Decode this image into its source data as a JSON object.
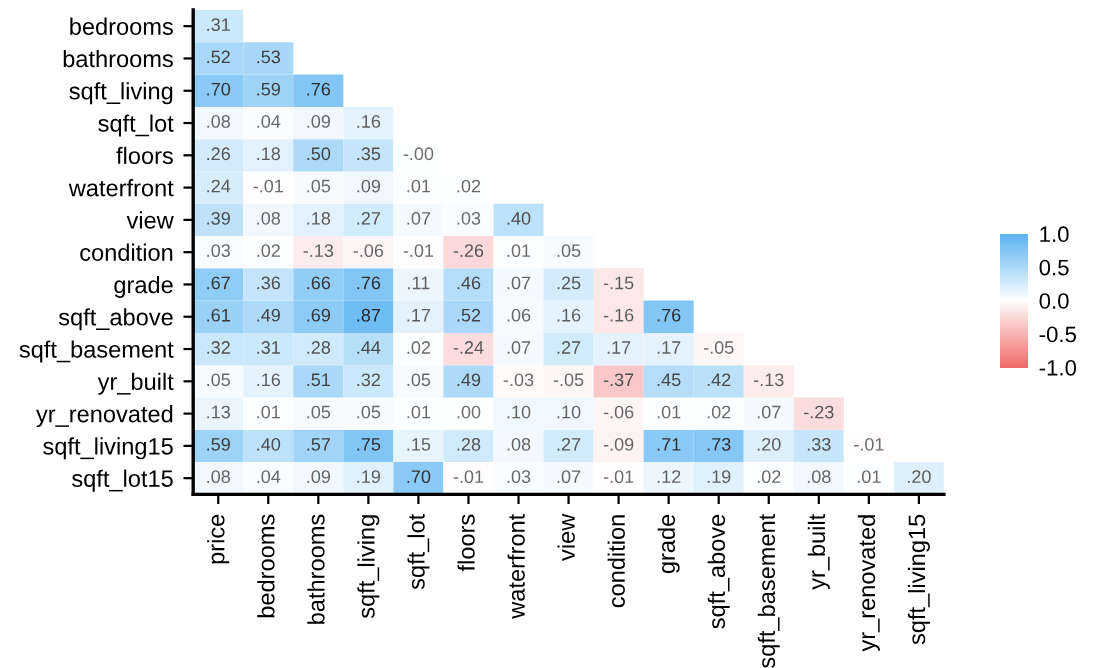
{
  "chart_data": {
    "type": "heatmap",
    "categories": [
      "price",
      "bedrooms",
      "bathrooms",
      "sqft_living",
      "sqft_lot",
      "floors",
      "waterfront",
      "view",
      "condition",
      "grade",
      "sqft_above",
      "sqft_basement",
      "yr_built",
      "yr_renovated",
      "sqft_living15"
    ],
    "y_categories": [
      "bedrooms",
      "bathrooms",
      "sqft_living",
      "sqft_lot",
      "floors",
      "waterfront",
      "view",
      "condition",
      "grade",
      "sqft_above",
      "sqft_basement",
      "yr_built",
      "yr_renovated",
      "sqft_living15",
      "sqft_lot15"
    ],
    "cells": [
      [
        0.31,
        null,
        null,
        null,
        null,
        null,
        null,
        null,
        null,
        null,
        null,
        null,
        null,
        null,
        null
      ],
      [
        0.52,
        0.53,
        null,
        null,
        null,
        null,
        null,
        null,
        null,
        null,
        null,
        null,
        null,
        null,
        null
      ],
      [
        0.7,
        0.59,
        0.76,
        null,
        null,
        null,
        null,
        null,
        null,
        null,
        null,
        null,
        null,
        null,
        null
      ],
      [
        0.08,
        0.04,
        0.09,
        0.16,
        null,
        null,
        null,
        null,
        null,
        null,
        null,
        null,
        null,
        null,
        null
      ],
      [
        0.26,
        0.18,
        0.5,
        0.35,
        0.0,
        null,
        null,
        null,
        null,
        null,
        null,
        null,
        null,
        null,
        null
      ],
      [
        0.24,
        -0.01,
        0.05,
        0.09,
        0.01,
        0.02,
        null,
        null,
        null,
        null,
        null,
        null,
        null,
        null,
        null
      ],
      [
        0.39,
        0.08,
        0.18,
        0.27,
        0.07,
        0.03,
        0.4,
        null,
        null,
        null,
        null,
        null,
        null,
        null,
        null
      ],
      [
        0.03,
        0.02,
        -0.13,
        -0.06,
        -0.01,
        -0.26,
        0.01,
        0.05,
        null,
        null,
        null,
        null,
        null,
        null,
        null
      ],
      [
        0.67,
        0.36,
        0.66,
        0.76,
        0.11,
        0.46,
        0.07,
        0.25,
        -0.15,
        null,
        null,
        null,
        null,
        null,
        null
      ],
      [
        0.61,
        0.49,
        0.69,
        0.87,
        0.17,
        0.52,
        0.06,
        0.16,
        -0.16,
        0.76,
        null,
        null,
        null,
        null,
        null
      ],
      [
        0.32,
        0.31,
        0.28,
        0.44,
        0.02,
        -0.24,
        0.07,
        0.27,
        0.17,
        0.17,
        -0.05,
        null,
        null,
        null,
        null
      ],
      [
        0.05,
        0.16,
        0.51,
        0.32,
        0.05,
        0.49,
        -0.03,
        -0.05,
        -0.37,
        0.45,
        0.42,
        -0.13,
        null,
        null,
        null
      ],
      [
        0.13,
        0.01,
        0.05,
        0.05,
        0.01,
        0.0,
        0.1,
        0.1,
        -0.06,
        0.01,
        0.02,
        0.07,
        -0.23,
        null,
        null
      ],
      [
        0.59,
        0.4,
        0.57,
        0.75,
        0.15,
        0.28,
        0.08,
        0.27,
        -0.09,
        0.71,
        0.73,
        0.2,
        0.33,
        -0.01,
        null
      ],
      [
        0.08,
        0.04,
        0.09,
        0.19,
        0.7,
        -0.01,
        0.03,
        0.07,
        -0.01,
        0.12,
        0.19,
        0.02,
        0.08,
        0.01,
        0.2
      ]
    ],
    "cell_labels": [
      [
        ".31",
        null,
        null,
        null,
        null,
        null,
        null,
        null,
        null,
        null,
        null,
        null,
        null,
        null,
        null
      ],
      [
        ".52",
        ".53",
        null,
        null,
        null,
        null,
        null,
        null,
        null,
        null,
        null,
        null,
        null,
        null,
        null
      ],
      [
        ".70",
        ".59",
        ".76",
        null,
        null,
        null,
        null,
        null,
        null,
        null,
        null,
        null,
        null,
        null,
        null
      ],
      [
        ".08",
        ".04",
        ".09",
        ".16",
        null,
        null,
        null,
        null,
        null,
        null,
        null,
        null,
        null,
        null,
        null
      ],
      [
        ".26",
        ".18",
        ".50",
        ".35",
        "-.00",
        null,
        null,
        null,
        null,
        null,
        null,
        null,
        null,
        null,
        null
      ],
      [
        ".24",
        "-.01",
        ".05",
        ".09",
        ".01",
        ".02",
        null,
        null,
        null,
        null,
        null,
        null,
        null,
        null,
        null
      ],
      [
        ".39",
        ".08",
        ".18",
        ".27",
        ".07",
        ".03",
        ".40",
        null,
        null,
        null,
        null,
        null,
        null,
        null,
        null
      ],
      [
        ".03",
        ".02",
        "-.13",
        "-.06",
        "-.01",
        "-.26",
        ".01",
        ".05",
        null,
        null,
        null,
        null,
        null,
        null,
        null
      ],
      [
        ".67",
        ".36",
        ".66",
        ".76",
        ".11",
        ".46",
        ".07",
        ".25",
        "-.15",
        null,
        null,
        null,
        null,
        null,
        null
      ],
      [
        ".61",
        ".49",
        ".69",
        ".87",
        ".17",
        ".52",
        ".06",
        ".16",
        "-.16",
        ".76",
        null,
        null,
        null,
        null,
        null
      ],
      [
        ".32",
        ".31",
        ".28",
        ".44",
        ".02",
        "-.24",
        ".07",
        ".27",
        ".17",
        ".17",
        "-.05",
        null,
        null,
        null,
        null
      ],
      [
        ".05",
        ".16",
        ".51",
        ".32",
        ".05",
        ".49",
        "-.03",
        "-.05",
        "-.37",
        ".45",
        ".42",
        "-.13",
        null,
        null,
        null
      ],
      [
        ".13",
        ".01",
        ".05",
        ".05",
        ".01",
        ".00",
        ".10",
        ".10",
        "-.06",
        ".01",
        ".02",
        ".07",
        "-.23",
        null,
        null
      ],
      [
        ".59",
        ".40",
        ".57",
        ".75",
        ".15",
        ".28",
        ".08",
        ".27",
        "-.09",
        ".71",
        ".73",
        ".20",
        ".33",
        "-.01",
        null
      ],
      [
        ".08",
        ".04",
        ".09",
        ".19",
        ".70",
        "-.01",
        ".03",
        ".07",
        "-.01",
        ".12",
        ".19",
        ".02",
        ".08",
        ".01",
        ".20"
      ]
    ],
    "colors": [
      "#f26b6b",
      "#ffffff",
      "#5ab4f2"
    ],
    "clim": [
      -1,
      1
    ],
    "cticks": [
      {
        "value": 1,
        "label": "1.0"
      },
      {
        "value": 0.5,
        "label": "0.5"
      },
      {
        "value": 0,
        "label": "0.0"
      },
      {
        "value": -0.5,
        "label": "-0.5"
      },
      {
        "value": -1,
        "label": "-1.0"
      }
    ]
  }
}
